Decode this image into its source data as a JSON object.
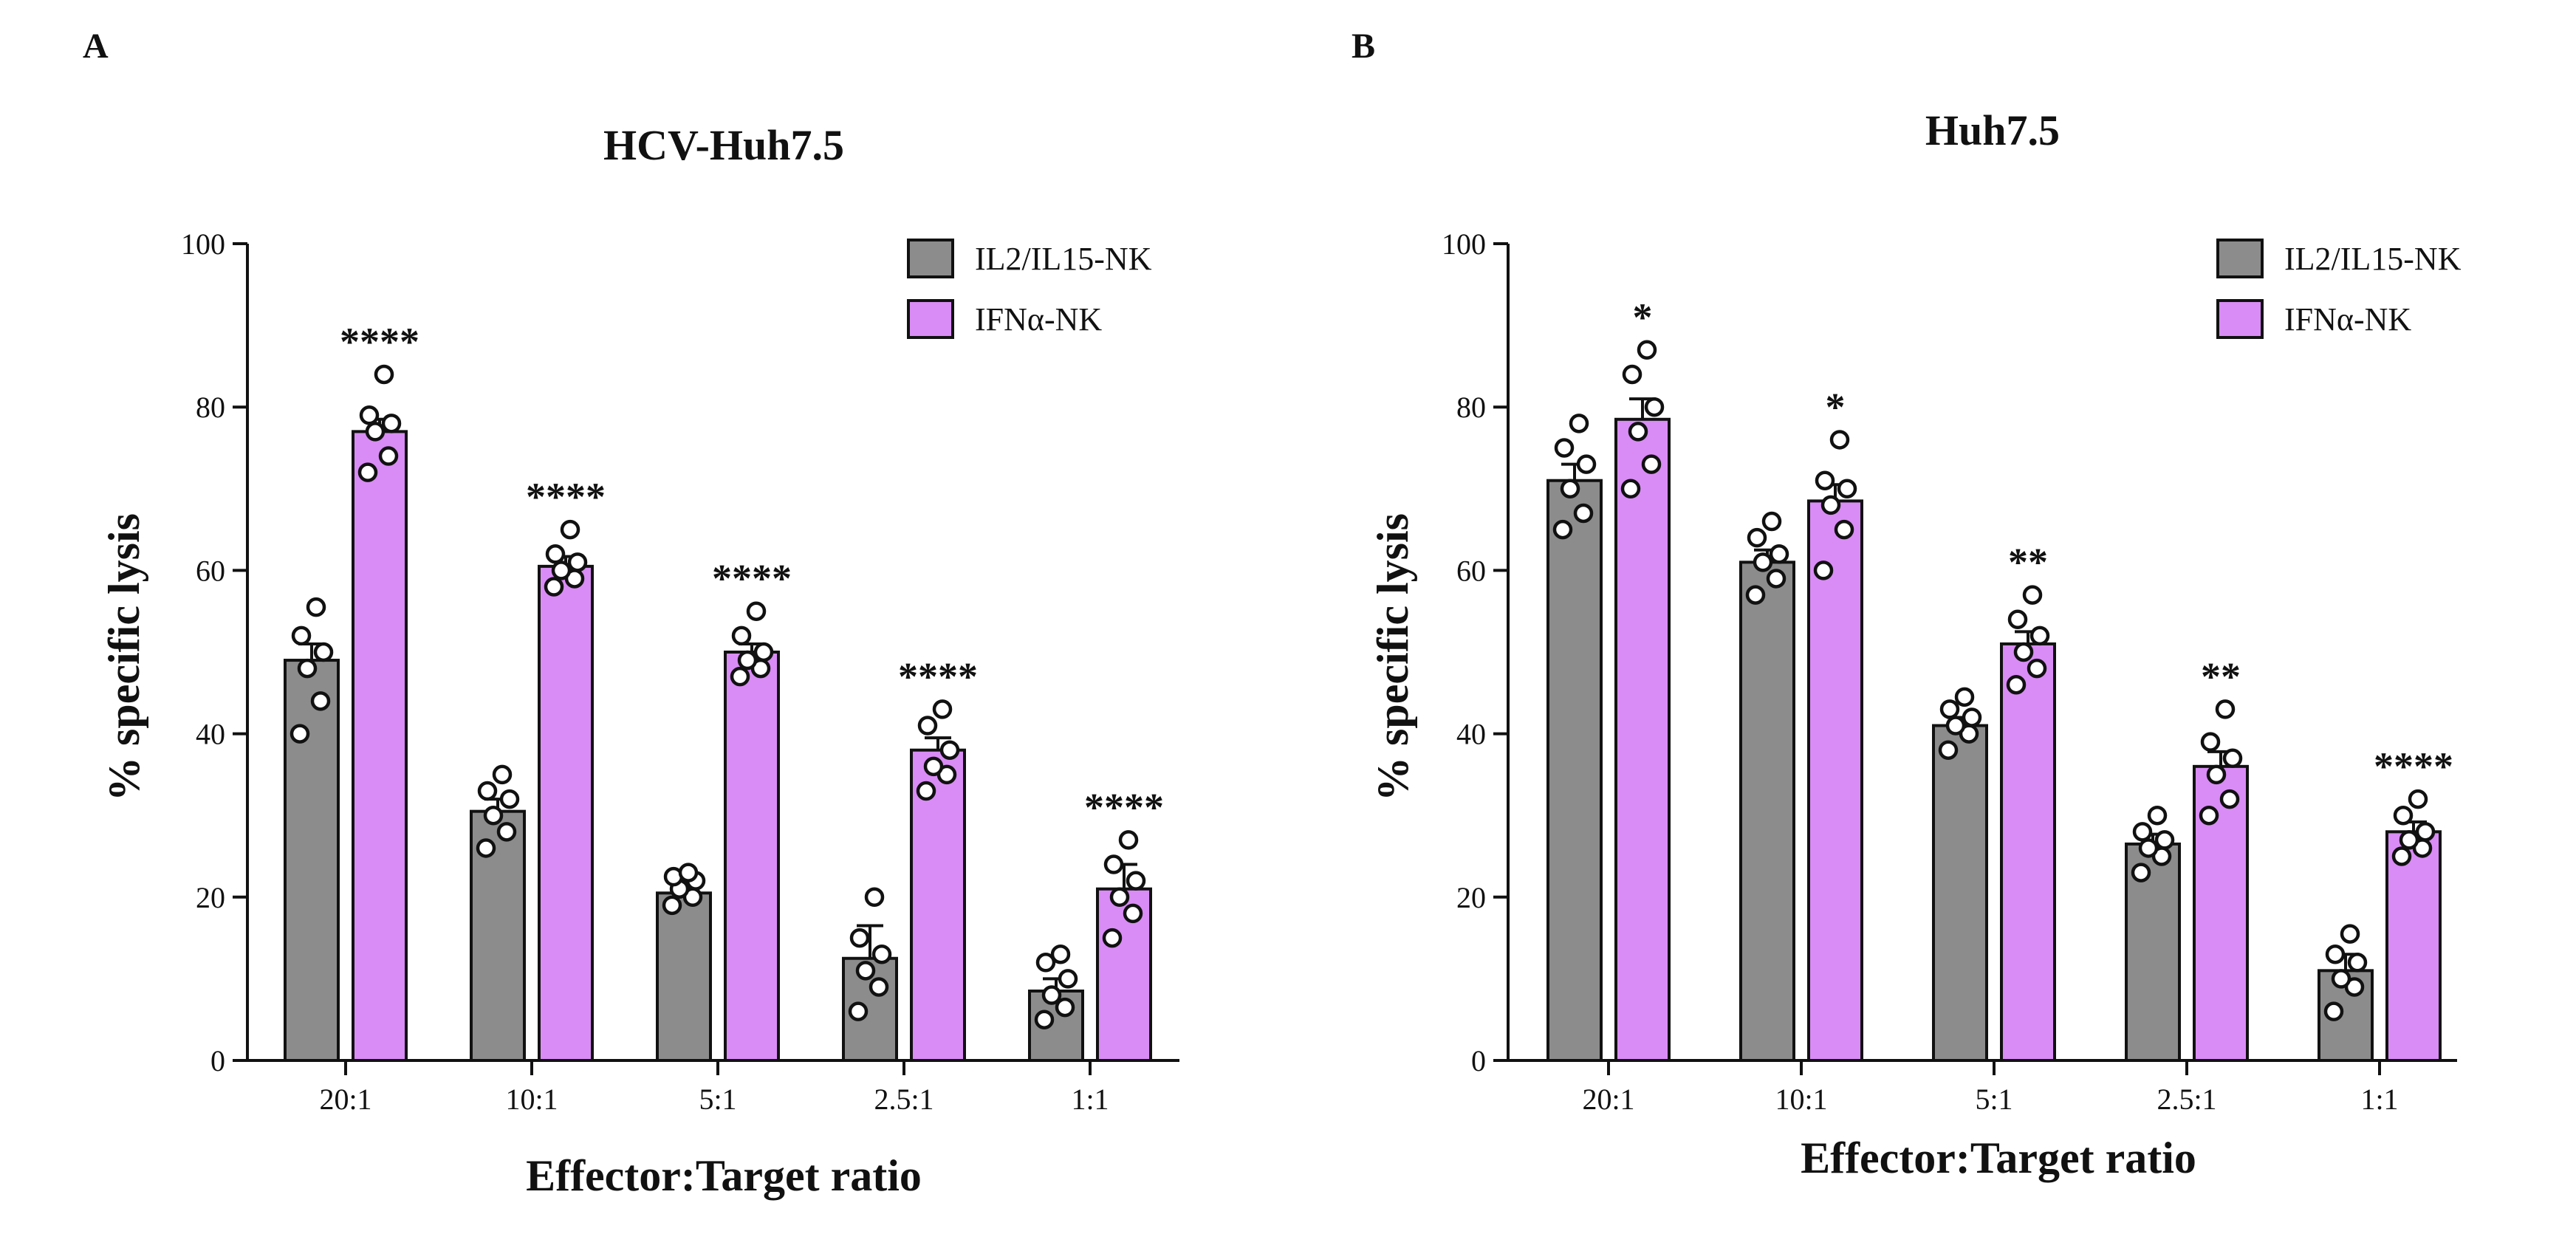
{
  "chart_data": [
    {
      "panel": "A",
      "type": "bar",
      "title": "HCV-Huh7.5",
      "xlabel": "Effector:Target ratio",
      "ylabel": "% specific lysis",
      "ylim": [
        0,
        100
      ],
      "yticks": [
        0,
        20,
        40,
        60,
        80,
        100
      ],
      "legend_position": "top-right",
      "categories": [
        "20:1",
        "10:1",
        "5:1",
        "2.5:1",
        "1:1"
      ],
      "series": [
        {
          "name": "IL2/IL15-NK",
          "color": "#8c8c8c",
          "values": [
            49,
            30.5,
            20.5,
            12.5,
            8.5
          ],
          "errors": [
            2,
            1.5,
            0.8,
            4,
            1.5
          ],
          "points": [
            [
              40,
              44,
              48,
              50,
              52,
              55.5
            ],
            [
              26,
              28,
              30,
              32,
              33,
              35
            ],
            [
              19,
              20,
              21,
              22,
              22.5,
              23
            ],
            [
              6,
              9,
              11,
              13,
              15,
              20
            ],
            [
              5,
              6.5,
              8,
              10,
              12,
              13
            ]
          ]
        },
        {
          "name": "IFNα-NK",
          "color": "#d98cf5",
          "values": [
            77,
            60.5,
            50,
            38,
            21
          ],
          "errors": [
            1.5,
            1.2,
            1,
            1.5,
            3
          ],
          "points": [
            [
              72,
              74,
              77,
              78,
              79,
              84
            ],
            [
              58,
              59,
              60,
              61,
              62,
              65
            ],
            [
              47,
              48,
              49,
              50,
              52,
              55
            ],
            [
              33,
              35,
              36,
              38,
              41,
              43
            ],
            [
              15,
              18,
              20,
              22,
              24,
              27
            ]
          ]
        }
      ],
      "significance": [
        "****",
        "****",
        "****",
        "****",
        "****"
      ]
    },
    {
      "panel": "B",
      "type": "bar",
      "title": "Huh7.5",
      "xlabel": "Effector:Target ratio",
      "ylabel": "% specific lysis",
      "ylim": [
        0,
        100
      ],
      "yticks": [
        0,
        20,
        40,
        60,
        80,
        100
      ],
      "legend_position": "top-right",
      "categories": [
        "20:1",
        "10:1",
        "5:1",
        "2.5:1",
        "1:1"
      ],
      "series": [
        {
          "name": "IL2/IL15-NK",
          "color": "#8c8c8c",
          "values": [
            71,
            61,
            41,
            26.5,
            11
          ],
          "errors": [
            2,
            1.5,
            1,
            1.2,
            2
          ],
          "points": [
            [
              65,
              67,
              70,
              73,
              75,
              78
            ],
            [
              57,
              59,
              61,
              62,
              64,
              66
            ],
            [
              38,
              40,
              41,
              42,
              43,
              44.5
            ],
            [
              23,
              25,
              26,
              27,
              28,
              30
            ],
            [
              6,
              9,
              10,
              12,
              13,
              15.5
            ]
          ]
        },
        {
          "name": "IFNα-NK",
          "color": "#d98cf5",
          "values": [
            78.5,
            68.5,
            51,
            36,
            28
          ],
          "errors": [
            2.5,
            2,
            1.5,
            1.8,
            1.2
          ],
          "points": [
            [
              70,
              73,
              77,
              80,
              84,
              87
            ],
            [
              60,
              65,
              68,
              70,
              71,
              76
            ],
            [
              46,
              48,
              50,
              52,
              54,
              57
            ],
            [
              30,
              32,
              35,
              37,
              39,
              43
            ],
            [
              25,
              26,
              27,
              28,
              30,
              32
            ]
          ]
        }
      ],
      "significance": [
        "*",
        "*",
        "**",
        "**",
        "****"
      ]
    }
  ]
}
